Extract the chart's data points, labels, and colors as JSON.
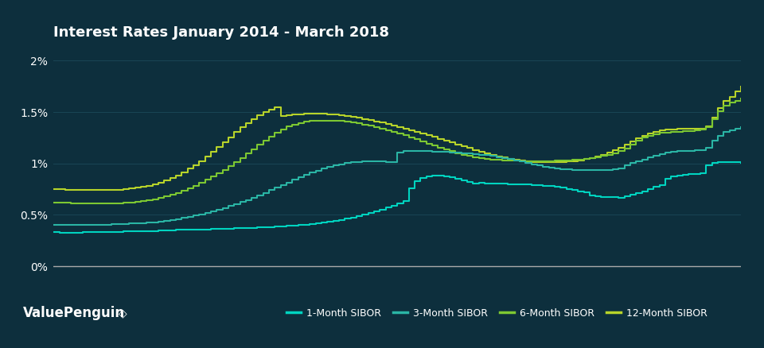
{
  "title": "Interest Rates January 2014 - March 2018",
  "background_color": "#0d2f3d",
  "plot_bg_color": "#0d2f3d",
  "line_colors": {
    "1m": "#00d4c0",
    "3m": "#2ab5a5",
    "6m": "#7dc832",
    "12m": "#b8d42a"
  },
  "legend_labels": [
    "1-Month SIBOR",
    "3-Month SIBOR",
    "6-Month SIBOR",
    "12-Month SIBOR"
  ],
  "yticks": [
    0.0,
    0.5,
    1.0,
    1.5,
    2.0
  ],
  "ytick_labels": [
    "0%",
    "0.5%",
    "1%",
    "1.5%",
    "2%"
  ],
  "ylabel_color": "#ffffff",
  "grid_color": "#1a4555",
  "title_color": "#ffffff",
  "title_fontsize": 13,
  "watermark": "ValuePenguin",
  "sibor_1m": [
    0.33,
    0.329,
    0.329,
    0.328,
    0.329,
    0.33,
    0.331,
    0.332,
    0.333,
    0.334,
    0.335,
    0.337,
    0.338,
    0.34,
    0.341,
    0.342,
    0.343,
    0.345,
    0.347,
    0.349,
    0.351,
    0.353,
    0.355,
    0.357,
    0.358,
    0.359,
    0.36,
    0.362,
    0.364,
    0.366,
    0.368,
    0.37,
    0.372,
    0.374,
    0.376,
    0.378,
    0.38,
    0.383,
    0.386,
    0.389,
    0.393,
    0.397,
    0.401,
    0.406,
    0.412,
    0.418,
    0.425,
    0.433,
    0.442,
    0.452,
    0.463,
    0.475,
    0.488,
    0.502,
    0.518,
    0.535,
    0.553,
    0.572,
    0.592,
    0.613,
    0.635,
    0.758,
    0.83,
    0.858,
    0.876,
    0.882,
    0.882,
    0.875,
    0.864,
    0.851,
    0.837,
    0.822,
    0.807,
    0.81,
    0.808,
    0.806,
    0.804,
    0.802,
    0.8,
    0.798,
    0.796,
    0.794,
    0.792,
    0.79,
    0.785,
    0.779,
    0.772,
    0.764,
    0.754,
    0.743,
    0.731,
    0.717,
    0.69,
    0.682,
    0.676,
    0.672,
    0.67,
    0.669,
    0.68,
    0.695,
    0.71,
    0.73,
    0.752,
    0.772,
    0.79,
    0.85,
    0.871,
    0.882,
    0.892,
    0.895,
    0.898,
    0.902,
    0.98,
    1.005,
    1.01,
    1.015,
    1.012,
    1.01,
    1.008
  ],
  "sibor_3m": [
    0.4,
    0.4,
    0.4,
    0.4,
    0.4,
    0.401,
    0.402,
    0.403,
    0.404,
    0.406,
    0.408,
    0.41,
    0.412,
    0.415,
    0.418,
    0.421,
    0.425,
    0.43,
    0.436,
    0.443,
    0.451,
    0.46,
    0.47,
    0.481,
    0.493,
    0.506,
    0.52,
    0.535,
    0.551,
    0.568,
    0.586,
    0.605,
    0.625,
    0.646,
    0.668,
    0.691,
    0.715,
    0.74,
    0.765,
    0.79,
    0.815,
    0.84,
    0.865,
    0.89,
    0.91,
    0.93,
    0.95,
    0.968,
    0.982,
    0.994,
    1.004,
    1.012,
    1.015,
    1.018,
    1.019,
    1.02,
    1.018,
    1.015,
    1.012,
    1.108,
    1.12,
    1.12,
    1.12,
    1.119,
    1.118,
    1.116,
    1.114,
    1.112,
    1.109,
    1.106,
    1.102,
    1.098,
    1.093,
    1.087,
    1.08,
    1.072,
    1.063,
    1.053,
    1.042,
    1.03,
    1.018,
    1.006,
    0.994,
    0.982,
    0.971,
    0.962,
    0.954,
    0.947,
    0.942,
    0.938,
    0.935,
    0.934,
    0.934,
    0.935,
    0.937,
    0.94,
    0.945,
    0.951,
    0.98,
    1.005,
    1.02,
    1.04,
    1.058,
    1.075,
    1.09,
    1.103,
    1.112,
    1.118,
    1.122,
    1.125,
    1.128,
    1.132,
    1.15,
    1.22,
    1.27,
    1.305,
    1.325,
    1.34,
    1.35
  ],
  "sibor_6m": [
    0.62,
    0.618,
    0.616,
    0.614,
    0.612,
    0.611,
    0.61,
    0.61,
    0.61,
    0.611,
    0.612,
    0.614,
    0.616,
    0.62,
    0.625,
    0.632,
    0.641,
    0.652,
    0.665,
    0.68,
    0.697,
    0.716,
    0.737,
    0.76,
    0.785,
    0.812,
    0.841,
    0.872,
    0.905,
    0.94,
    0.977,
    1.015,
    1.055,
    1.096,
    1.138,
    1.18,
    1.222,
    1.263,
    1.3,
    1.333,
    1.36,
    1.38,
    1.395,
    1.405,
    1.412,
    1.416,
    1.418,
    1.418,
    1.416,
    1.412,
    1.406,
    1.398,
    1.389,
    1.378,
    1.366,
    1.353,
    1.339,
    1.324,
    1.308,
    1.291,
    1.273,
    1.254,
    1.235,
    1.215,
    1.195,
    1.175,
    1.155,
    1.136,
    1.118,
    1.101,
    1.086,
    1.073,
    1.062,
    1.053,
    1.046,
    1.04,
    1.036,
    1.032,
    1.029,
    1.027,
    1.025,
    1.024,
    1.023,
    1.023,
    1.023,
    1.024,
    1.026,
    1.028,
    1.031,
    1.035,
    1.04,
    1.046,
    1.053,
    1.062,
    1.073,
    1.086,
    1.101,
    1.118,
    1.148,
    1.185,
    1.22,
    1.25,
    1.272,
    1.287,
    1.297,
    1.303,
    1.307,
    1.31,
    1.312,
    1.315,
    1.32,
    1.327,
    1.35,
    1.43,
    1.51,
    1.56,
    1.59,
    1.61,
    1.63
  ],
  "sibor_12m": [
    0.75,
    0.748,
    0.746,
    0.744,
    0.742,
    0.741,
    0.74,
    0.74,
    0.741,
    0.742,
    0.744,
    0.747,
    0.751,
    0.756,
    0.763,
    0.772,
    0.783,
    0.797,
    0.814,
    0.834,
    0.857,
    0.884,
    0.914,
    0.948,
    0.985,
    1.025,
    1.068,
    1.113,
    1.16,
    1.208,
    1.256,
    1.304,
    1.35,
    1.393,
    1.432,
    1.467,
    1.498,
    1.523,
    1.543,
    1.458,
    1.468,
    1.475,
    1.48,
    1.483,
    1.484,
    1.484,
    1.482,
    1.479,
    1.474,
    1.468,
    1.461,
    1.453,
    1.444,
    1.434,
    1.423,
    1.411,
    1.398,
    1.385,
    1.371,
    1.356,
    1.341,
    1.325,
    1.309,
    1.292,
    1.275,
    1.258,
    1.24,
    1.222,
    1.204,
    1.186,
    1.168,
    1.15,
    1.132,
    1.115,
    1.099,
    1.084,
    1.07,
    1.058,
    1.047,
    1.037,
    1.029,
    1.022,
    1.017,
    1.013,
    1.011,
    1.01,
    1.011,
    1.014,
    1.018,
    1.024,
    1.032,
    1.042,
    1.054,
    1.068,
    1.085,
    1.105,
    1.128,
    1.155,
    1.183,
    1.213,
    1.242,
    1.268,
    1.29,
    1.307,
    1.319,
    1.327,
    1.332,
    1.335,
    1.337,
    1.338,
    1.34,
    1.342,
    1.36,
    1.45,
    1.54,
    1.61,
    1.65,
    1.7,
    1.75
  ]
}
